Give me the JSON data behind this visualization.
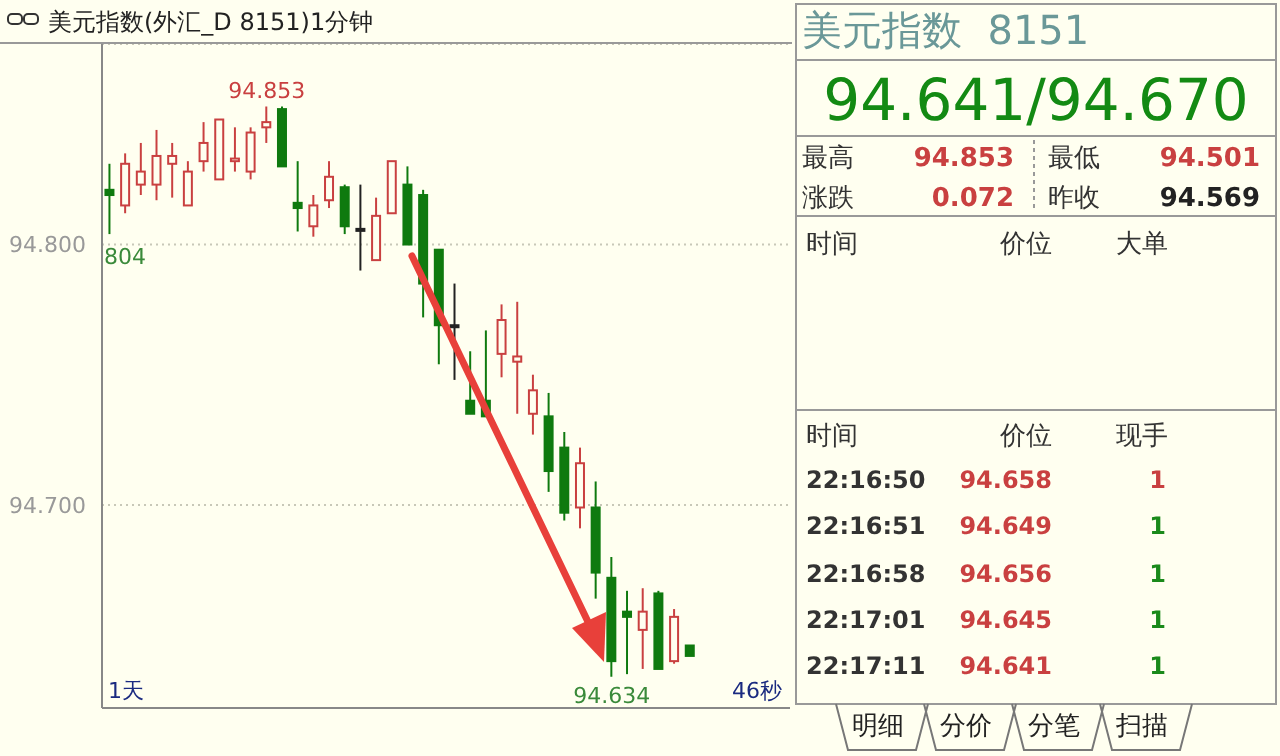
{
  "chart_data": [
    {
      "type": "candlestick",
      "title": "美元指数(外汇_D 8151)1分钟",
      "categories": [
        null,
        null,
        null,
        null,
        null,
        null,
        null,
        null,
        null,
        null,
        null,
        null,
        null,
        null,
        null,
        null,
        null,
        null,
        null,
        null,
        null,
        null,
        null,
        null,
        null,
        null,
        null,
        null,
        null,
        null,
        null,
        null,
        null,
        null,
        null,
        null,
        null,
        null
      ],
      "ohlc": [
        [
          94.821,
          94.831,
          94.804,
          94.819
        ],
        [
          94.815,
          94.835,
          94.812,
          94.831
        ],
        [
          94.823,
          94.839,
          94.819,
          94.828
        ],
        [
          94.823,
          94.844,
          94.817,
          94.834
        ],
        [
          94.831,
          94.839,
          94.818,
          94.834
        ],
        [
          94.815,
          94.832,
          94.815,
          94.828
        ],
        [
          94.832,
          94.847,
          94.828,
          94.839
        ],
        [
          94.825,
          94.848,
          94.825,
          94.848
        ],
        [
          94.832,
          94.845,
          94.828,
          94.833
        ],
        [
          94.828,
          94.845,
          94.825,
          94.843
        ],
        [
          94.845,
          94.853,
          94.839,
          94.847
        ],
        [
          94.852,
          94.853,
          94.83,
          94.83
        ],
        [
          94.816,
          94.832,
          94.805,
          94.814
        ],
        [
          94.807,
          94.819,
          94.803,
          94.815
        ],
        [
          94.817,
          94.832,
          94.814,
          94.826
        ],
        [
          94.822,
          94.823,
          94.804,
          94.807
        ],
        [
          94.806,
          94.823,
          94.79,
          94.806
        ],
        [
          94.794,
          94.818,
          94.794,
          94.811
        ],
        [
          94.812,
          94.832,
          94.812,
          94.832
        ],
        [
          94.823,
          94.83,
          94.8,
          94.8
        ],
        [
          94.819,
          94.821,
          94.772,
          94.785
        ],
        [
          94.798,
          94.798,
          94.754,
          94.769
        ],
        [
          94.769,
          94.785,
          94.748,
          94.769
        ],
        [
          94.74,
          94.759,
          94.735,
          94.735
        ],
        [
          94.74,
          94.767,
          94.734,
          94.734
        ],
        [
          94.758,
          94.777,
          94.749,
          94.771
        ],
        [
          94.755,
          94.778,
          94.735,
          94.757
        ],
        [
          94.735,
          94.75,
          94.727,
          94.744
        ],
        [
          94.734,
          94.743,
          94.705,
          94.713
        ],
        [
          94.722,
          94.728,
          94.694,
          94.697
        ],
        [
          94.699,
          94.722,
          94.691,
          94.716
        ],
        [
          94.699,
          94.709,
          94.664,
          94.674
        ],
        [
          94.672,
          94.68,
          94.634,
          94.64
        ],
        [
          94.659,
          94.667,
          94.635,
          94.657
        ],
        [
          94.652,
          94.668,
          94.637,
          94.659
        ],
        [
          94.666,
          94.667,
          94.637,
          94.637
        ],
        [
          94.64,
          94.66,
          94.639,
          94.657
        ],
        [
          94.646,
          94.646,
          94.642,
          94.642
        ]
      ],
      "ylim": [
        94.622,
        94.877
      ],
      "yticks": [
        {
          "value": 94.8,
          "label": "94.800"
        },
        {
          "value": 94.7,
          "label": "94.700"
        }
      ],
      "grid": "y",
      "tick_labels": "y",
      "annotations": [
        {
          "text": "94.853",
          "y": 94.853
        },
        "804",
        {
          "text": "94.634",
          "y": 94.634
        },
        "1天",
        "46秒"
      ]
    },
    {
      "type": "other",
      "title": "美元指数  8151",
      "annotations": [
        "94.641/94.670",
        "最高",
        "94.853",
        "最低",
        "94.501",
        "涨跌",
        "0.072",
        "昨收",
        "94.569",
        "时间",
        "价位",
        "大单",
        "时间",
        "价位",
        "现手",
        "22:16:50",
        "94.658",
        "1",
        "22:16:51",
        "94.649",
        "1",
        "22:16:58",
        "94.656",
        "1",
        "22:17:01",
        "94.645",
        "1",
        "22:17:11",
        "94.641",
        "1",
        "明细",
        "分价",
        "分笔",
        "扫描"
      ]
    }
  ]
}
